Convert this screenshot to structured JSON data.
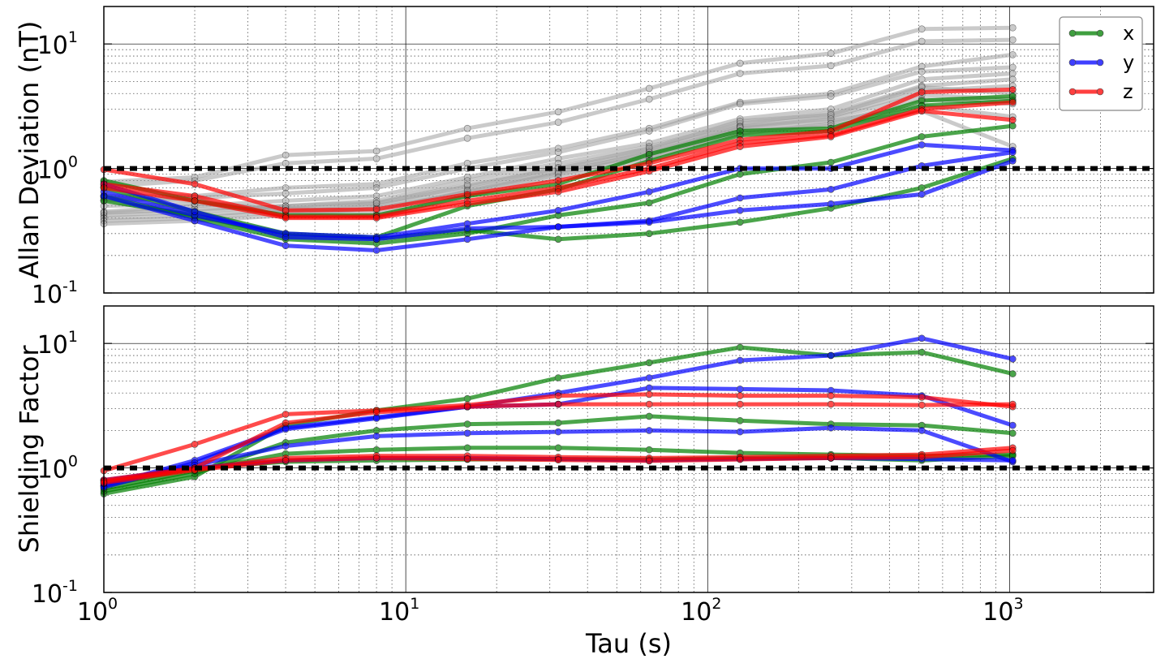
{
  "chart_data": [
    {
      "type": "line",
      "panel": "top",
      "ylabel": "Allan Deviation (nT)",
      "xlabel": "",
      "xscale": "log",
      "yscale": "log",
      "xlim": [
        1,
        3000
      ],
      "ylim": [
        0.1,
        20
      ],
      "grid": true,
      "reference_line": 1,
      "x": [
        1,
        2,
        4,
        8,
        16,
        32,
        64,
        128,
        256,
        512,
        1024
      ],
      "x_tick_labels": [
        "",
        "",
        "",
        ""
      ],
      "y_ticks": [
        {
          "value": 0.1,
          "base": "10",
          "exp": "-1"
        },
        {
          "value": 1,
          "base": "10",
          "exp": "0"
        },
        {
          "value": 10,
          "base": "10",
          "exp": "1"
        }
      ],
      "legend": {
        "position": "top-right",
        "entries": [
          {
            "label": "x",
            "color": "#008000"
          },
          {
            "label": "y",
            "color": "#0000ff"
          },
          {
            "label": "z",
            "color": "#ff0000"
          }
        ]
      },
      "series": [
        {
          "color": "#a0a0a0",
          "values": [
            0.78,
            0.85,
            1.28,
            1.38,
            2.1,
            2.85,
            4.4,
            7.0,
            8.4,
            13.2,
            13.5
          ]
        },
        {
          "color": "#a0a0a0",
          "values": [
            0.72,
            0.8,
            1.1,
            1.2,
            1.75,
            2.35,
            3.6,
            5.8,
            6.7,
            10.5,
            10.8
          ]
        },
        {
          "color": "#a0a0a0",
          "values": [
            0.6,
            0.6,
            0.7,
            0.75,
            1.1,
            1.45,
            2.1,
            3.4,
            4.0,
            6.6,
            8.2
          ]
        },
        {
          "color": "#a0a0a0",
          "values": [
            0.55,
            0.58,
            0.63,
            0.7,
            1.0,
            1.35,
            2.0,
            3.3,
            3.8,
            6.0,
            6.5
          ]
        },
        {
          "color": "#a0a0a0",
          "values": [
            0.45,
            0.5,
            0.55,
            0.6,
            0.85,
            1.2,
            1.6,
            2.5,
            3.0,
            5.2,
            5.8
          ]
        },
        {
          "color": "#a0a0a0",
          "values": [
            0.42,
            0.45,
            0.5,
            0.55,
            0.8,
            1.1,
            1.5,
            2.3,
            2.8,
            4.6,
            5.2
          ]
        },
        {
          "color": "#a0a0a0",
          "values": [
            0.4,
            0.42,
            0.47,
            0.52,
            0.72,
            1.0,
            1.4,
            2.2,
            2.6,
            4.2,
            4.6
          ]
        },
        {
          "color": "#a0a0a0",
          "values": [
            0.38,
            0.4,
            0.45,
            0.5,
            0.68,
            0.95,
            1.3,
            2.1,
            2.4,
            3.2,
            2.6
          ]
        },
        {
          "color": "#a0a0a0",
          "values": [
            0.36,
            0.38,
            0.42,
            0.48,
            0.64,
            0.9,
            1.25,
            2.0,
            2.2,
            2.9,
            1.5
          ]
        },
        {
          "color": "#a0a0a0",
          "values": [
            0.44,
            0.47,
            0.5,
            0.53,
            0.74,
            1.02,
            1.45,
            2.4,
            2.7,
            4.5,
            4.0
          ]
        },
        {
          "color": "#a0a0a0",
          "values": [
            0.5,
            0.52,
            0.48,
            0.45,
            0.66,
            0.92,
            1.35,
            2.15,
            2.5,
            3.9,
            3.6
          ]
        },
        {
          "color": "#a0a0a0",
          "values": [
            0.58,
            0.55,
            0.45,
            0.42,
            0.6,
            0.85,
            1.2,
            1.9,
            2.3,
            3.6,
            3.3
          ]
        },
        {
          "color": "#008000",
          "values": [
            0.8,
            0.55,
            0.42,
            0.42,
            0.6,
            0.75,
            1.3,
            2.0,
            2.1,
            3.5,
            3.8
          ]
        },
        {
          "color": "#008000",
          "values": [
            0.7,
            0.45,
            0.3,
            0.28,
            0.5,
            0.68,
            1.15,
            1.85,
            2.0,
            3.2,
            3.5
          ]
        },
        {
          "color": "#008000",
          "values": [
            0.6,
            0.4,
            0.27,
            0.25,
            0.3,
            0.42,
            0.53,
            0.9,
            1.12,
            1.8,
            2.2
          ]
        },
        {
          "color": "#008000",
          "values": [
            0.55,
            0.42,
            0.29,
            0.27,
            0.32,
            0.27,
            0.3,
            0.37,
            0.48,
            0.7,
            1.2
          ]
        },
        {
          "color": "#0000ff",
          "values": [
            0.65,
            0.42,
            0.3,
            0.28,
            0.36,
            0.46,
            0.65,
            1.0,
            1.0,
            1.55,
            1.4
          ]
        },
        {
          "color": "#0000ff",
          "values": [
            0.6,
            0.38,
            0.24,
            0.22,
            0.27,
            0.34,
            0.38,
            0.58,
            0.68,
            1.05,
            1.35
          ]
        },
        {
          "color": "#0000ff",
          "values": [
            0.75,
            0.45,
            0.28,
            0.27,
            0.33,
            0.34,
            0.37,
            0.46,
            0.52,
            0.62,
            1.15
          ]
        },
        {
          "color": "#ff0000",
          "values": [
            0.98,
            0.75,
            0.46,
            0.47,
            0.62,
            0.8,
            1.1,
            1.7,
            2.0,
            4.1,
            4.3
          ]
        },
        {
          "color": "#ff0000",
          "values": [
            0.75,
            0.6,
            0.41,
            0.41,
            0.55,
            0.7,
            1.0,
            1.6,
            1.85,
            3.0,
            3.4
          ]
        },
        {
          "color": "#ff0000",
          "values": [
            0.7,
            0.55,
            0.4,
            0.4,
            0.52,
            0.65,
            0.95,
            1.5,
            1.8,
            2.9,
            2.45
          ]
        }
      ]
    },
    {
      "type": "line",
      "panel": "bottom",
      "ylabel": "Shielding Factor",
      "xlabel": "Tau (s)",
      "xscale": "log",
      "yscale": "log",
      "xlim": [
        1,
        3000
      ],
      "ylim": [
        0.1,
        20
      ],
      "grid": true,
      "reference_line": 1,
      "x": [
        1,
        2,
        4,
        8,
        16,
        32,
        64,
        128,
        256,
        512,
        1024
      ],
      "x_ticks": [
        {
          "value": 1,
          "base": "10",
          "exp": "0"
        },
        {
          "value": 10,
          "base": "10",
          "exp": "1"
        },
        {
          "value": 100,
          "base": "10",
          "exp": "2"
        },
        {
          "value": 1000,
          "base": "10",
          "exp": "3"
        }
      ],
      "y_ticks": [
        {
          "value": 0.1,
          "base": "10",
          "exp": "-1"
        },
        {
          "value": 1,
          "base": "10",
          "exp": "0"
        },
        {
          "value": 10,
          "base": "10",
          "exp": "1"
        }
      ],
      "series": [
        {
          "color": "#008000",
          "values": [
            0.62,
            0.85,
            2.2,
            2.9,
            3.6,
            5.3,
            7.0,
            9.3,
            8.0,
            8.5,
            5.7
          ]
        },
        {
          "color": "#008000",
          "values": [
            0.65,
            0.9,
            1.6,
            2.0,
            2.25,
            2.3,
            2.6,
            2.4,
            2.25,
            2.2,
            1.9
          ]
        },
        {
          "color": "#008000",
          "values": [
            0.68,
            0.95,
            1.3,
            1.4,
            1.45,
            1.45,
            1.4,
            1.32,
            1.28,
            1.25,
            1.28
          ]
        },
        {
          "color": "#008000",
          "values": [
            0.72,
            1.0,
            1.12,
            1.15,
            1.17,
            1.18,
            1.17,
            1.2,
            1.2,
            1.15,
            1.25
          ]
        },
        {
          "color": "#0000ff",
          "values": [
            0.72,
            1.15,
            2.1,
            2.55,
            3.1,
            4.0,
            5.3,
            7.3,
            8.0,
            11.0,
            7.5
          ]
        },
        {
          "color": "#0000ff",
          "values": [
            0.7,
            1.1,
            2.05,
            2.5,
            3.1,
            3.25,
            4.4,
            4.3,
            4.2,
            3.8,
            2.2
          ]
        },
        {
          "color": "#0000ff",
          "values": [
            0.75,
            1.05,
            1.5,
            1.8,
            1.9,
            1.95,
            2.0,
            1.95,
            2.1,
            2.0,
            1.12
          ]
        },
        {
          "color": "#0000ff",
          "values": [
            0.8,
            1.0,
            1.15,
            1.2,
            1.2,
            1.18,
            1.15,
            1.18,
            1.2,
            1.18,
            1.15
          ]
        },
        {
          "color": "#ff0000",
          "values": [
            0.95,
            1.55,
            2.7,
            2.9,
            3.2,
            3.8,
            3.9,
            3.8,
            3.8,
            3.7,
            3.1
          ]
        },
        {
          "color": "#ff0000",
          "values": [
            0.8,
            1.0,
            2.3,
            2.8,
            3.1,
            3.25,
            3.25,
            3.25,
            3.25,
            3.2,
            3.25
          ]
        },
        {
          "color": "#ff0000",
          "values": [
            0.78,
            0.98,
            1.2,
            1.25,
            1.25,
            1.22,
            1.2,
            1.22,
            1.25,
            1.28,
            1.45
          ]
        },
        {
          "color": "#ff0000",
          "values": [
            0.76,
            0.96,
            1.15,
            1.2,
            1.18,
            1.16,
            1.14,
            1.17,
            1.2,
            1.22,
            1.38
          ]
        }
      ]
    }
  ]
}
